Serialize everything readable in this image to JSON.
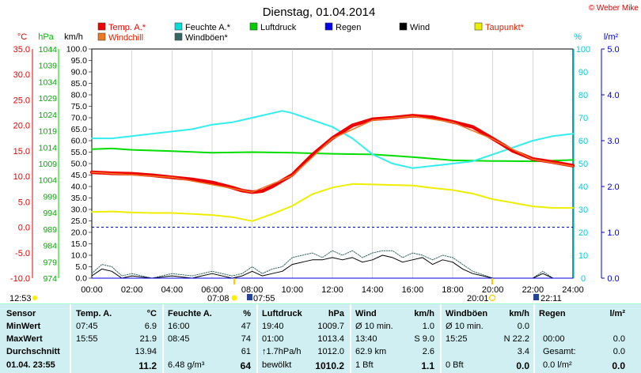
{
  "title": "Dienstag, 01.04.2014",
  "credit": "© Weber Mike",
  "legend": [
    {
      "label": "Temp. A.*",
      "color": "#ee0000"
    },
    {
      "label": "Feuchte A.*",
      "color": "#00dddd"
    },
    {
      "label": "Luftdruck",
      "color": "#00cc00"
    },
    {
      "label": "Regen",
      "color": "#0000ee"
    },
    {
      "label": "Wind",
      "color": "#000000"
    },
    {
      "label": "Taupunkt*",
      "color": "#eeee00"
    },
    {
      "label": "Windchill",
      "color": "#ee7722"
    },
    {
      "label": "Windböen*",
      "color": "#336666"
    }
  ],
  "units": {
    "temp": "°C",
    "pressure": "hPa",
    "wind": "km/h",
    "humidity": "%",
    "rain": "l/m²"
  },
  "axes": {
    "temp_ticks": [
      "35.0",
      "30.0",
      "25.0",
      "20.0",
      "15.0",
      "10.0",
      "5.0",
      "0.0",
      "-5.0",
      "-10.0"
    ],
    "pressure_ticks": [
      "1044",
      "1039",
      "1034",
      "1029",
      "1024",
      "1019",
      "1014",
      "1009",
      "1004",
      "999",
      "994",
      "989",
      "984",
      "979",
      "974"
    ],
    "wind_ticks": [
      "100.0",
      "95.0",
      "90.0",
      "85.0",
      "80.0",
      "75.0",
      "70.0",
      "65.0",
      "60.0",
      "55.0",
      "50.0",
      "45.0",
      "40.0",
      "35.0",
      "30.0",
      "25.0",
      "20.0",
      "15.0",
      "10.0",
      "5.0",
      "0.0"
    ],
    "humidity_ticks": [
      "100",
      "90",
      "80",
      "70",
      "60",
      "50",
      "40",
      "30",
      "20",
      "10",
      "0"
    ],
    "rain_ticks": [
      "5.0",
      "4.0",
      "3.0",
      "2.0",
      "1.0",
      "0.0"
    ],
    "time_ticks": [
      "00:00",
      "02:00",
      "04:00",
      "06:00",
      "08:00",
      "10:00",
      "12:00",
      "14:00",
      "16:00",
      "18:00",
      "20:00",
      "22:00",
      "24:00"
    ]
  },
  "sun": {
    "moonset": "12:53",
    "sunrise": "07:08",
    "dawn": "07:55",
    "sunset": "20:01",
    "dusk": "22:11"
  },
  "chart_data": {
    "type": "line",
    "title": "Dienstag, 01.04.2014",
    "x_unit": "hours",
    "xlim": [
      0,
      24
    ],
    "series": [
      {
        "name": "Temp. A.*",
        "axis": "°C",
        "ylim": [
          -10,
          35
        ],
        "x": [
          0,
          1,
          2,
          3,
          4,
          5,
          6,
          7,
          7.5,
          8,
          8.5,
          9,
          10,
          11,
          12,
          13,
          14,
          15,
          16,
          17,
          18,
          19,
          20,
          21,
          22,
          23,
          24
        ],
        "values": [
          10.8,
          10.6,
          10.5,
          10.2,
          9.8,
          9.4,
          8.8,
          7.8,
          7.2,
          6.9,
          7.1,
          8.0,
          10.3,
          14.2,
          17.5,
          20.0,
          21.2,
          21.5,
          21.9,
          21.6,
          20.7,
          19.7,
          17.4,
          15.0,
          13.4,
          12.8,
          12.1
        ]
      },
      {
        "name": "Windchill",
        "axis": "°C",
        "ylim": [
          -10,
          35
        ],
        "x": [
          0,
          4,
          8,
          10,
          12,
          14,
          16,
          18,
          20,
          22,
          24
        ],
        "values": [
          10.8,
          9.8,
          6.9,
          10.1,
          17.4,
          21.0,
          21.8,
          20.6,
          17.3,
          13.3,
          12.0
        ]
      },
      {
        "name": "Feuchte A.*",
        "axis": "%",
        "ylim": [
          0,
          100
        ],
        "x": [
          0,
          1,
          2,
          3,
          4,
          5,
          6,
          7,
          8,
          8.5,
          9,
          9.5,
          10,
          11,
          12,
          13,
          14,
          15,
          15.5,
          16,
          17,
          18,
          19,
          20,
          21,
          22,
          23,
          24
        ],
        "values": [
          61,
          61,
          62,
          63,
          64,
          65,
          67,
          68,
          70,
          71,
          72,
          73,
          72,
          69,
          66,
          61,
          54,
          50,
          49,
          48,
          49,
          50,
          51,
          54,
          57,
          60,
          62,
          63
        ]
      },
      {
        "name": "Luftdruck",
        "axis": "hPa",
        "ylim": [
          974,
          1044
        ],
        "x": [
          0,
          1,
          2,
          4,
          6,
          8,
          10,
          12,
          14,
          16,
          18,
          20,
          22,
          24
        ],
        "values": [
          1013.4,
          1013.6,
          1013.2,
          1012.8,
          1012.3,
          1012.5,
          1012.3,
          1012.0,
          1011.8,
          1011.0,
          1010.0,
          1009.8,
          1009.7,
          1010.1
        ]
      },
      {
        "name": "Taupunkt*",
        "axis": "°C",
        "ylim": [
          -10,
          35
        ],
        "x": [
          0,
          1,
          2,
          3,
          4,
          5,
          6,
          7,
          8,
          9,
          10,
          11,
          12,
          13,
          14,
          15,
          16,
          17,
          18,
          19,
          20,
          21,
          22,
          23,
          24
        ],
        "values": [
          3.0,
          3.1,
          2.9,
          2.8,
          2.8,
          2.6,
          2.4,
          2.0,
          1.2,
          2.6,
          4.2,
          6.5,
          7.8,
          8.5,
          8.4,
          8.3,
          8.2,
          7.7,
          7.3,
          6.6,
          5.5,
          4.8,
          4.1,
          3.8,
          3.8
        ]
      },
      {
        "name": "Wind",
        "axis": "km/h",
        "ylim": [
          0,
          100
        ],
        "x": [
          0,
          0.5,
          1,
          1.5,
          2,
          3,
          4,
          5,
          6,
          7,
          7.5,
          8,
          8.5,
          9,
          9.5,
          10,
          10.5,
          11,
          11.5,
          12,
          12.5,
          13,
          13.5,
          14,
          14.5,
          15,
          15.5,
          16,
          16.5,
          17,
          17.5,
          18,
          18.5,
          19,
          20,
          21,
          22,
          22.5,
          23,
          24
        ],
        "values": [
          1,
          4,
          3,
          0,
          1,
          0,
          1,
          0,
          2,
          0,
          1,
          3,
          1,
          2,
          3,
          6,
          7,
          8,
          8,
          9,
          8,
          9,
          7,
          8,
          10,
          9,
          7,
          8,
          9,
          6,
          8,
          7,
          4,
          2,
          0,
          0,
          0,
          2,
          0,
          0
        ]
      },
      {
        "name": "Windböen*",
        "axis": "km/h",
        "ylim": [
          0,
          100
        ],
        "x": [
          0,
          0.5,
          1,
          1.5,
          2,
          3,
          4,
          5,
          6,
          7,
          7.5,
          8,
          8.5,
          9,
          9.5,
          10,
          10.5,
          11,
          11.5,
          12,
          12.5,
          13,
          13.5,
          14,
          14.5,
          15,
          15.5,
          16,
          16.5,
          17,
          17.5,
          18,
          18.5,
          19,
          20,
          21,
          22,
          22.5,
          23,
          24
        ],
        "values": [
          2,
          6,
          5,
          1,
          2,
          0,
          2,
          1,
          3,
          1,
          2,
          5,
          2,
          4,
          5,
          9,
          10,
          11,
          9,
          12,
          10,
          12,
          9,
          11,
          12,
          12,
          9,
          11,
          10,
          8,
          10,
          9,
          6,
          3,
          0,
          0,
          0,
          3,
          0,
          0
        ]
      },
      {
        "name": "Regen",
        "axis": "l/m²",
        "ylim": [
          0,
          5
        ],
        "x": [
          0,
          24
        ],
        "values": [
          0,
          0
        ]
      }
    ]
  },
  "table": {
    "headers": {
      "sensor": "Sensor",
      "temp": "Temp. A.",
      "temp_unit": "°C",
      "hum": "Feuchte A.",
      "hum_unit": "%",
      "press": "Luftdruck",
      "press_unit": "hPa",
      "wind": "Wind",
      "wind_unit": "km/h",
      "gust": "Windböen",
      "gust_unit": "km/h",
      "rain": "Regen",
      "rain_unit": "l/m²"
    },
    "rows": [
      {
        "label": "MinWert",
        "temp_t": "07:45",
        "temp_v": "6.9",
        "hum_t": "16:00",
        "hum_v": "47",
        "press_t": "19:40",
        "press_v": "1009.7",
        "wind_t": "Ø 10 min.",
        "wind_v": "1.0",
        "gust_t": "Ø 10 min.",
        "gust_v": "0.0",
        "rain_t": "",
        "rain_v": ""
      },
      {
        "label": "MaxWert",
        "temp_t": "15:55",
        "temp_v": "21.9",
        "hum_t": "08:45",
        "hum_v": "74",
        "press_t": "01:00",
        "press_v": "1013.4",
        "wind_t": "13:40",
        "wind_v": "S 9.0",
        "gust_t": "15:25",
        "gust_v": "N 22.2",
        "rain_t": "00:00",
        "rain_v": "0.0"
      },
      {
        "label": "Durchschnitt",
        "temp_t": "",
        "temp_v": "13.94",
        "hum_t": "",
        "hum_v": "61",
        "press_t": "↑1.7hPa/h",
        "press_v": "1012.0",
        "wind_t": "62.9 km",
        "wind_v": "2.6",
        "gust_t": "",
        "gust_v": "3.4",
        "rain_t": "Gesamt:",
        "rain_v": "0.0"
      },
      {
        "label": "01.04. 23:55",
        "temp_t": "",
        "temp_v": "11.2",
        "hum_t": "6.48 g/m³",
        "hum_v": "64",
        "press_t": "bewölkt",
        "press_v": "1010.2",
        "wind_t": "1 Bft",
        "wind_v": "1.1",
        "gust_t": "0 Bft",
        "gust_v": "0.0",
        "rain_t": "0.0 l/m²",
        "rain_v": "0.0"
      }
    ]
  }
}
